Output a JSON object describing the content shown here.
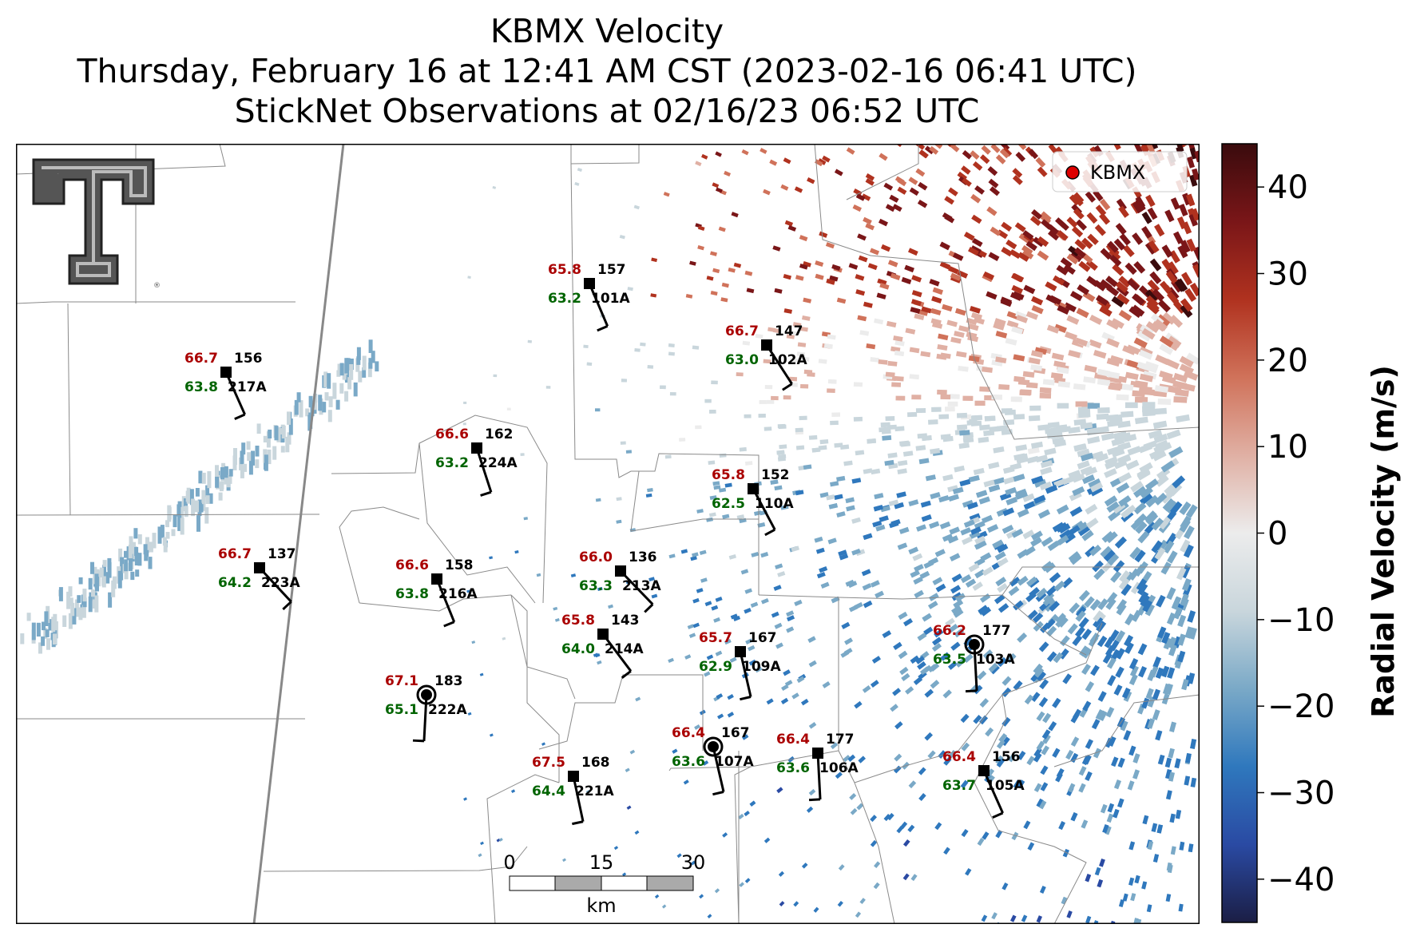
{
  "title": {
    "line1": "KBMX Velocity",
    "line2": "Thursday, February 16 at 12:41 AM CST (2023-02-16 06:41 UTC)",
    "line3": "StickNet Observations at 02/16/23 06:52 UTC"
  },
  "legend": {
    "label": "KBMX",
    "marker_color": "#dd0000"
  },
  "colorbar": {
    "label": "Radial Velocity (m/s)",
    "ticks": [
      "40",
      "30",
      "20",
      "10",
      "0",
      "−10",
      "−20",
      "−30",
      "−40"
    ],
    "range": [
      -45,
      45
    ],
    "colors": [
      "#1b1e45",
      "#2a4aa3",
      "#2f78bd",
      "#7aa9c7",
      "#c9d6dc",
      "#ececec",
      "#e0b0a4",
      "#d0725a",
      "#b0321f",
      "#7a1618",
      "#3a0b0d"
    ]
  },
  "scalebar": {
    "ticks": [
      "0",
      "15",
      "30"
    ],
    "unit": "km"
  },
  "logo": {
    "text": "TT",
    "color": "#555555"
  },
  "stations": [
    {
      "id": "101A",
      "temp": "65.8",
      "dew": "63.2",
      "dir": "157"
    },
    {
      "id": "102A",
      "temp": "66.7",
      "dew": "63.0",
      "dir": "147"
    },
    {
      "id": "217A",
      "temp": "66.7",
      "dew": "63.8",
      "dir": "156"
    },
    {
      "id": "224A",
      "temp": "66.6",
      "dew": "63.2",
      "dir": "162"
    },
    {
      "id": "110A",
      "temp": "65.8",
      "dew": "62.5",
      "dir": "152"
    },
    {
      "id": "223A",
      "temp": "66.7",
      "dew": "64.2",
      "dir": "137"
    },
    {
      "id": "216A",
      "temp": "66.6",
      "dew": "63.8",
      "dir": "158"
    },
    {
      "id": "213A",
      "temp": "66.0",
      "dew": "63.3",
      "dir": "136"
    },
    {
      "id": "214A",
      "temp": "65.8",
      "dew": "64.0",
      "dir": "143"
    },
    {
      "id": "109A",
      "temp": "65.7",
      "dew": "62.9",
      "dir": "167"
    },
    {
      "id": "103A",
      "temp": "66.2",
      "dew": "63.5",
      "dir": "177"
    },
    {
      "id": "222A",
      "temp": "67.1",
      "dew": "65.1",
      "dir": "183"
    },
    {
      "id": "107A",
      "temp": "66.4",
      "dew": "63.6",
      "dir": "167"
    },
    {
      "id": "106A",
      "temp": "66.4",
      "dew": "63.6",
      "dir": "177"
    },
    {
      "id": "221A",
      "temp": "67.5",
      "dew": "64.4",
      "dir": "168"
    },
    {
      "id": "105A",
      "temp": "66.4",
      "dew": "63.7",
      "dir": "156"
    }
  ]
}
